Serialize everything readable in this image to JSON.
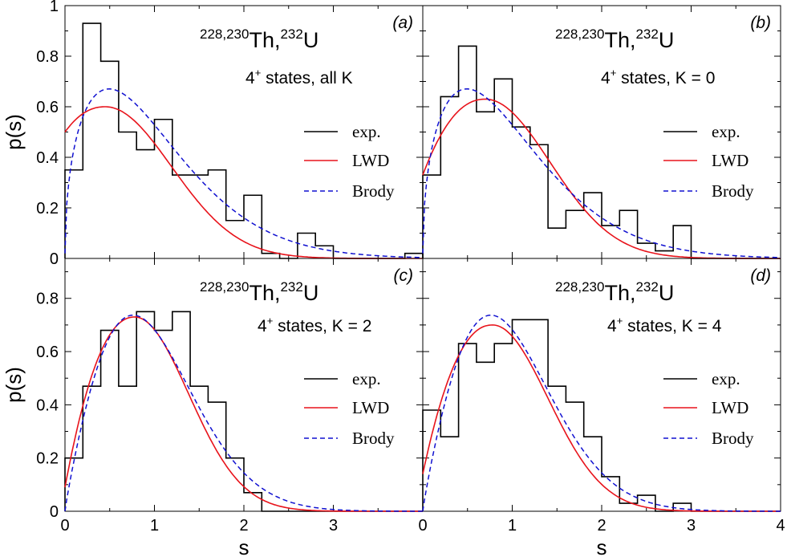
{
  "colors": {
    "exp": "#000000",
    "lwd": "#e8131b",
    "brody": "#1010d0"
  },
  "axes": {
    "ylabel": "p(s)",
    "xlabel": "s",
    "top_yticks": [
      "0",
      "0.2",
      "0.4",
      "0.6",
      "0.8",
      "1"
    ],
    "bottom_yticks": [
      "0",
      "0.2",
      "0.4",
      "0.6",
      "0.8"
    ],
    "left_xticks": [
      "0",
      "1",
      "2",
      "3"
    ],
    "right_xticks": [
      "0",
      "1",
      "2",
      "3",
      "4"
    ]
  },
  "chart_data": [
    {
      "type": "line",
      "panel": "(a)",
      "nucleus": {
        "sup1": "228,230",
        "el1": "Th,",
        "sup2": "232",
        "el2": "U"
      },
      "states": {
        "pre": "4",
        "sup": "+",
        "post": " states, all K"
      },
      "legend": [
        "exp.",
        "LWD",
        "Brody"
      ],
      "xlim": [
        0,
        4
      ],
      "ylim": [
        0,
        1
      ],
      "xlabel": "",
      "ylabel": "p(s)",
      "series": [
        {
          "name": "exp.",
          "kind": "histogram",
          "bin_width": 0.2,
          "values": [
            0.35,
            0.93,
            0.78,
            0.5,
            0.43,
            0.55,
            0.33,
            0.33,
            0.35,
            0.15,
            0.25,
            0.02,
            0.0,
            0.1,
            0.05,
            0.0,
            0.0,
            0.0,
            0.0,
            0.02
          ]
        },
        {
          "name": "LWD",
          "kind": "curve",
          "params": {
            "a": 0.5,
            "b": 0.45,
            "c": 0.2,
            "d": 0.74
          }
        },
        {
          "name": "Brody",
          "kind": "curve",
          "params": {
            "q": 0.45
          }
        }
      ]
    },
    {
      "type": "line",
      "panel": "(b)",
      "nucleus": {
        "sup1": "228,230",
        "el1": "Th,",
        "sup2": "232",
        "el2": "U"
      },
      "states": {
        "pre": "4",
        "sup": "+",
        "post": " states, K = 0"
      },
      "legend": [
        "exp.",
        "LWD",
        "Brody"
      ],
      "xlim": [
        0,
        4
      ],
      "ylim": [
        0,
        1
      ],
      "xlabel": "",
      "ylabel": "",
      "series": [
        {
          "name": "exp.",
          "kind": "histogram",
          "bin_width": 0.2,
          "values": [
            0.33,
            0.64,
            0.84,
            0.58,
            0.71,
            0.52,
            0.45,
            0.12,
            0.19,
            0.26,
            0.13,
            0.19,
            0.06,
            0.03,
            0.13,
            0.0,
            0.0,
            0.0,
            0.0,
            0.0
          ]
        },
        {
          "name": "LWD",
          "kind": "curve",
          "params": {
            "a": 0.33,
            "b": 0.7,
            "c": 0.3,
            "d": 0.72
          }
        },
        {
          "name": "Brody",
          "kind": "curve",
          "params": {
            "q": 0.45
          }
        }
      ]
    },
    {
      "type": "line",
      "panel": "(c)",
      "nucleus": {
        "sup1": "228,230",
        "el1": "Th,",
        "sup2": "232",
        "el2": "U"
      },
      "states": {
        "pre": "4",
        "sup": "+",
        "post": " states, K = 2"
      },
      "legend": [
        "exp.",
        "LWD",
        "Brody"
      ],
      "xlim": [
        0,
        4
      ],
      "ylim": [
        0,
        0.95
      ],
      "xlabel": "s",
      "ylabel": "p(s)",
      "series": [
        {
          "name": "exp.",
          "kind": "histogram",
          "bin_width": 0.2,
          "values": [
            0.2,
            0.47,
            0.68,
            0.47,
            0.75,
            0.68,
            0.75,
            0.47,
            0.41,
            0.2,
            0.07,
            0.0,
            0.0,
            0.0,
            0.0,
            0.0,
            0.0,
            0.0,
            0.0,
            0.0
          ]
        },
        {
          "name": "LWD",
          "kind": "curve",
          "params": {
            "a": 0.09,
            "b": 0.78,
            "c": 0.62,
            "d": 0.6
          }
        },
        {
          "name": "Brody",
          "kind": "curve",
          "params": {
            "q": 0.9
          }
        }
      ]
    },
    {
      "type": "line",
      "panel": "(d)",
      "nucleus": {
        "sup1": "228,230",
        "el1": "Th,",
        "sup2": "232",
        "el2": "U"
      },
      "states": {
        "pre": "4",
        "sup": "+",
        "post": " states, K = 4"
      },
      "legend": [
        "exp.",
        "LWD",
        "Brody"
      ],
      "xlim": [
        0,
        4
      ],
      "ylim": [
        0,
        0.95
      ],
      "xlabel": "s",
      "ylabel": "",
      "series": [
        {
          "name": "exp.",
          "kind": "histogram",
          "bin_width": 0.2,
          "values": [
            0.38,
            0.28,
            0.63,
            0.56,
            0.63,
            0.72,
            0.72,
            0.47,
            0.41,
            0.28,
            0.13,
            0.03,
            0.06,
            0.0,
            0.03,
            0.0,
            0.0,
            0.0,
            0.0,
            0.0
          ]
        },
        {
          "name": "LWD",
          "kind": "curve",
          "params": {
            "a": 0.14,
            "b": 0.78,
            "c": 0.5,
            "d": 0.62
          }
        },
        {
          "name": "Brody",
          "kind": "curve",
          "params": {
            "q": 0.9
          }
        }
      ]
    }
  ]
}
